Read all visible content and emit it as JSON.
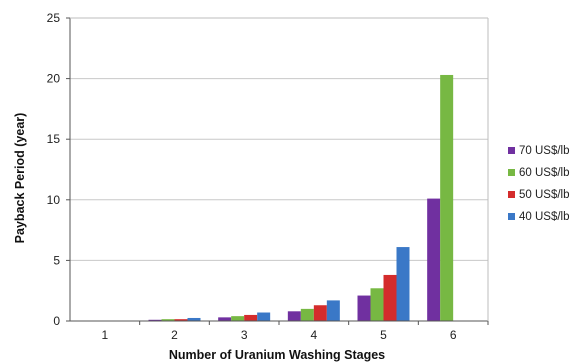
{
  "chart_data": {
    "type": "bar",
    "title": "",
    "xlabel": "Number of Uranium Washing Stages",
    "ylabel": "Payback Period (year)",
    "categories": [
      "1",
      "2",
      "3",
      "4",
      "5",
      "6"
    ],
    "ylim": [
      0,
      25
    ],
    "yticks": [
      "0",
      "5",
      "10",
      "15",
      "20",
      "25"
    ],
    "grid": true,
    "legend_position": "right",
    "series": [
      {
        "name": "70 US$/lb",
        "color": "#7030a0",
        "values": [
          0,
          0.1,
          0.3,
          0.8,
          2.1,
          10.1
        ]
      },
      {
        "name": "60 US$/lb",
        "color": "#77b843",
        "values": [
          0,
          0.15,
          0.4,
          1.0,
          2.7,
          20.3
        ]
      },
      {
        "name": "50 US$/lb",
        "color": "#d42c2c",
        "values": [
          0,
          0.15,
          0.5,
          1.3,
          3.8,
          null
        ]
      },
      {
        "name": "40 US$/lb",
        "color": "#3a78c7",
        "values": [
          0,
          0.25,
          0.7,
          1.7,
          6.1,
          null
        ]
      }
    ]
  }
}
